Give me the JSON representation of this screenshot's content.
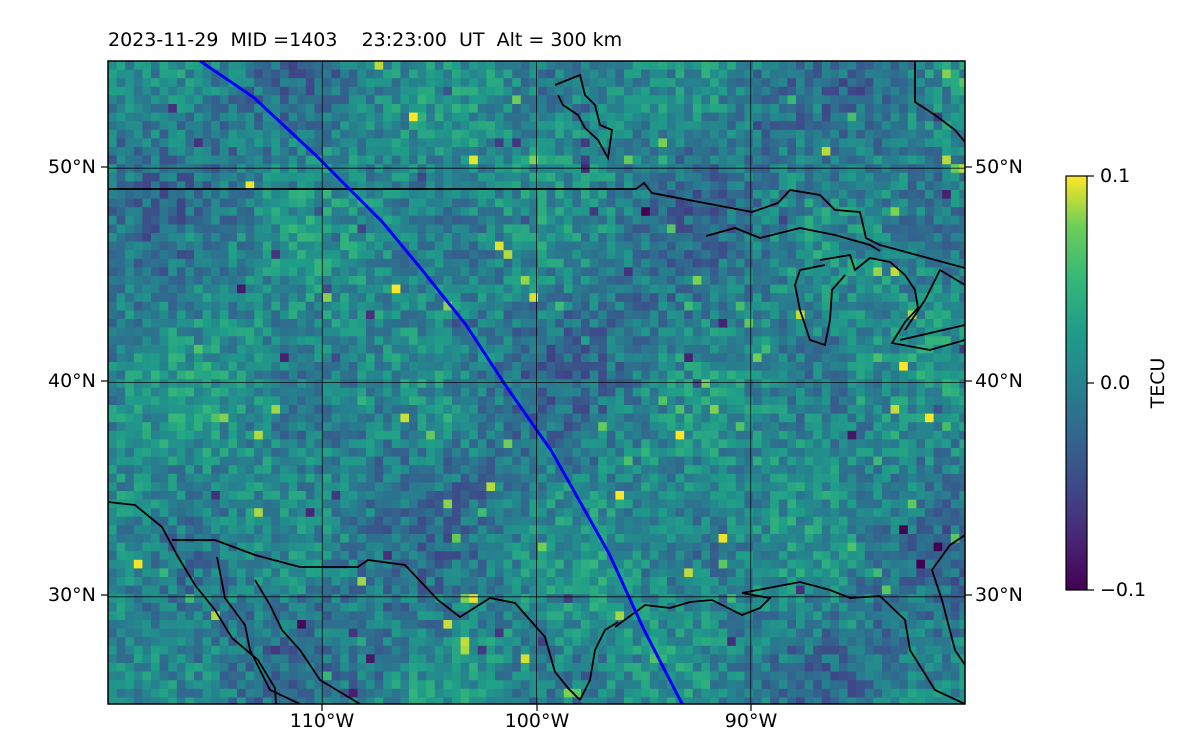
{
  "title": "2023-11-29  MID =1403    23:23:00  UT  Alt = 300 km",
  "map": {
    "lon_range": [
      -120,
      -80
    ],
    "lat_range": [
      25,
      55
    ],
    "gridlines": true,
    "gridline_lons": [
      -110,
      -100,
      -90
    ],
    "gridline_lats": [
      30,
      40,
      50
    ],
    "y_ticks": [
      "30°N",
      "40°N",
      "50°N"
    ],
    "x_ticks": [
      "110°W",
      "100°W",
      "90°W"
    ],
    "field": "TEC perturbation",
    "colormap": "viridis",
    "coastline_color": "#000000",
    "track_color": "#0000ff",
    "track": [
      {
        "lon": -115.7,
        "lat": 55.0
      },
      {
        "lon": -113.2,
        "lat": 53.3
      },
      {
        "lon": -110.3,
        "lat": 50.6
      },
      {
        "lon": -107.2,
        "lat": 47.5
      },
      {
        "lon": -105.3,
        "lat": 45.2
      },
      {
        "lon": -103.3,
        "lat": 42.7
      },
      {
        "lon": -101.4,
        "lat": 39.8
      },
      {
        "lon": -99.3,
        "lat": 36.8
      },
      {
        "lon": -96.6,
        "lat": 32.0
      },
      {
        "lon": -95.0,
        "lat": 28.5
      },
      {
        "lon": -93.2,
        "lat": 25.0
      }
    ]
  },
  "colorbar": {
    "label": "TECU",
    "min": -0.1,
    "max": 0.1,
    "ticks": [
      "0.1",
      "0.0",
      "−0.1"
    ]
  }
}
